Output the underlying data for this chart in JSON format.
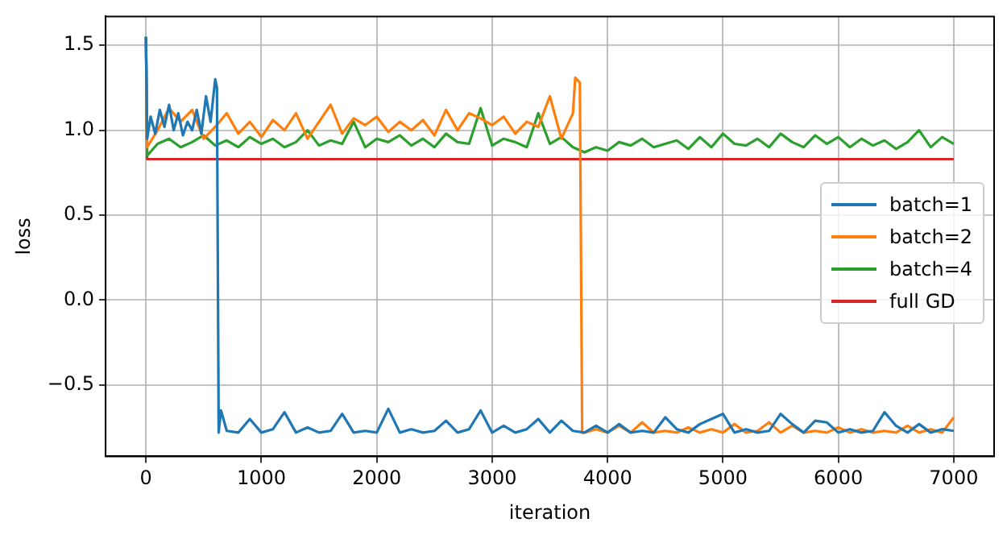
{
  "chart_data": {
    "type": "line",
    "xlabel": "iteration",
    "ylabel": "loss",
    "xlim": [
      -350,
      7350
    ],
    "xticks": [
      0,
      1000,
      2000,
      3000,
      4000,
      5000,
      6000,
      7000
    ],
    "ylim": [
      -0.92,
      1.67
    ],
    "yticks": [
      {
        "value": -0.5,
        "label": "−0.5"
      },
      {
        "value": 0,
        "label": "0.0"
      },
      {
        "value": 0.5,
        "label": "0.5"
      },
      {
        "value": 1,
        "label": "1.0"
      },
      {
        "value": 1.5,
        "label": "1.5"
      }
    ],
    "grid": true,
    "legend": "right",
    "marker": "none",
    "line_style": "solid",
    "series": [
      {
        "name": "batch=1",
        "color": "#1f77b4",
        "x": [
          0,
          10,
          40,
          80,
          120,
          160,
          200,
          240,
          280,
          320,
          360,
          400,
          440,
          480,
          520,
          560,
          600,
          615,
          630,
          650,
          700,
          800,
          900,
          1000,
          1100,
          1200,
          1300,
          1400,
          1500,
          1600,
          1700,
          1800,
          1900,
          2000,
          2100,
          2200,
          2300,
          2400,
          2500,
          2600,
          2700,
          2800,
          2900,
          3000,
          3100,
          3200,
          3300,
          3400,
          3500,
          3600,
          3700,
          3800,
          3900,
          4000,
          4100,
          4200,
          4300,
          4400,
          4500,
          4600,
          4700,
          4800,
          4900,
          5000,
          5100,
          5200,
          5300,
          5400,
          5500,
          5600,
          5700,
          5800,
          5900,
          6000,
          6100,
          6200,
          6300,
          6400,
          6500,
          6600,
          6700,
          6800,
          6900,
          7000
        ],
        "values": [
          1.55,
          0.95,
          1.08,
          0.98,
          1.12,
          1.02,
          1.15,
          1.0,
          1.1,
          0.97,
          1.05,
          1.0,
          1.12,
          0.98,
          1.2,
          1.05,
          1.3,
          1.25,
          -0.78,
          -0.65,
          -0.77,
          -0.78,
          -0.7,
          -0.78,
          -0.76,
          -0.66,
          -0.78,
          -0.75,
          -0.78,
          -0.77,
          -0.67,
          -0.78,
          -0.77,
          -0.78,
          -0.64,
          -0.78,
          -0.76,
          -0.78,
          -0.77,
          -0.71,
          -0.78,
          -0.76,
          -0.65,
          -0.78,
          -0.74,
          -0.78,
          -0.76,
          -0.7,
          -0.78,
          -0.71,
          -0.77,
          -0.78,
          -0.74,
          -0.78,
          -0.73,
          -0.78,
          -0.77,
          -0.78,
          -0.69,
          -0.76,
          -0.78,
          -0.73,
          -0.7,
          -0.67,
          -0.78,
          -0.76,
          -0.78,
          -0.77,
          -0.67,
          -0.73,
          -0.78,
          -0.71,
          -0.72,
          -0.78,
          -0.76,
          -0.78,
          -0.77,
          -0.66,
          -0.74,
          -0.78,
          -0.73,
          -0.78,
          -0.76,
          -0.77
        ]
      },
      {
        "name": "batch=2",
        "color": "#ff7f0e",
        "x": [
          0,
          10,
          100,
          200,
          300,
          400,
          500,
          600,
          700,
          800,
          900,
          1000,
          1100,
          1200,
          1300,
          1400,
          1500,
          1600,
          1700,
          1800,
          1900,
          2000,
          2100,
          2200,
          2300,
          2400,
          2500,
          2600,
          2700,
          2800,
          2900,
          3000,
          3100,
          3200,
          3300,
          3400,
          3500,
          3600,
          3700,
          3720,
          3760,
          3780,
          3800,
          3900,
          4000,
          4100,
          4200,
          4300,
          4400,
          4500,
          4600,
          4700,
          4800,
          4900,
          5000,
          5100,
          5200,
          5300,
          5400,
          5500,
          5600,
          5700,
          5800,
          5900,
          6000,
          6100,
          6200,
          6300,
          6400,
          6500,
          6600,
          6700,
          6800,
          6900,
          7000
        ],
        "values": [
          1.55,
          0.9,
          1.0,
          1.13,
          1.05,
          1.12,
          0.95,
          1.02,
          1.1,
          0.98,
          1.05,
          0.96,
          1.06,
          1.0,
          1.1,
          0.95,
          1.05,
          1.15,
          0.98,
          1.07,
          1.03,
          1.08,
          0.99,
          1.05,
          1.0,
          1.06,
          0.97,
          1.12,
          1.0,
          1.1,
          1.07,
          1.03,
          1.08,
          0.98,
          1.05,
          1.02,
          1.2,
          0.95,
          1.1,
          1.31,
          1.28,
          -0.78,
          -0.78,
          -0.76,
          -0.78,
          -0.74,
          -0.78,
          -0.72,
          -0.78,
          -0.77,
          -0.78,
          -0.75,
          -0.78,
          -0.76,
          -0.78,
          -0.73,
          -0.78,
          -0.77,
          -0.72,
          -0.78,
          -0.74,
          -0.78,
          -0.77,
          -0.78,
          -0.75,
          -0.78,
          -0.76,
          -0.78,
          -0.77,
          -0.78,
          -0.74,
          -0.78,
          -0.76,
          -0.78,
          -0.69
        ]
      },
      {
        "name": "batch=4",
        "color": "#2ca02c",
        "x": [
          0,
          10,
          100,
          200,
          300,
          400,
          500,
          600,
          700,
          800,
          900,
          1000,
          1100,
          1200,
          1300,
          1400,
          1500,
          1600,
          1700,
          1800,
          1900,
          2000,
          2100,
          2200,
          2300,
          2400,
          2500,
          2600,
          2700,
          2800,
          2900,
          3000,
          3100,
          3200,
          3300,
          3400,
          3500,
          3600,
          3700,
          3800,
          3900,
          4000,
          4100,
          4200,
          4300,
          4400,
          4500,
          4600,
          4700,
          4800,
          4900,
          5000,
          5100,
          5200,
          5300,
          5400,
          5500,
          5600,
          5700,
          5800,
          5900,
          6000,
          6100,
          6200,
          6300,
          6400,
          6500,
          6600,
          6700,
          6800,
          6900,
          7000
        ],
        "values": [
          1.55,
          0.85,
          0.92,
          0.95,
          0.9,
          0.93,
          0.97,
          0.91,
          0.94,
          0.9,
          0.96,
          0.92,
          0.95,
          0.9,
          0.93,
          1.0,
          0.91,
          0.94,
          0.92,
          1.05,
          0.9,
          0.95,
          0.93,
          0.97,
          0.91,
          0.95,
          0.9,
          0.98,
          0.93,
          0.92,
          1.13,
          0.91,
          0.95,
          0.93,
          0.9,
          1.1,
          0.92,
          0.96,
          0.9,
          0.87,
          0.9,
          0.88,
          0.93,
          0.91,
          0.95,
          0.9,
          0.92,
          0.94,
          0.89,
          0.96,
          0.9,
          0.98,
          0.92,
          0.91,
          0.95,
          0.9,
          0.98,
          0.93,
          0.9,
          0.97,
          0.92,
          0.96,
          0.9,
          0.95,
          0.91,
          0.94,
          0.89,
          0.93,
          1.0,
          0.9,
          0.96,
          0.92
        ]
      },
      {
        "name": "full GD",
        "color": "#d62728",
        "x": [
          0,
          10,
          7000
        ],
        "values": [
          1.55,
          0.83,
          0.83
        ]
      }
    ]
  }
}
